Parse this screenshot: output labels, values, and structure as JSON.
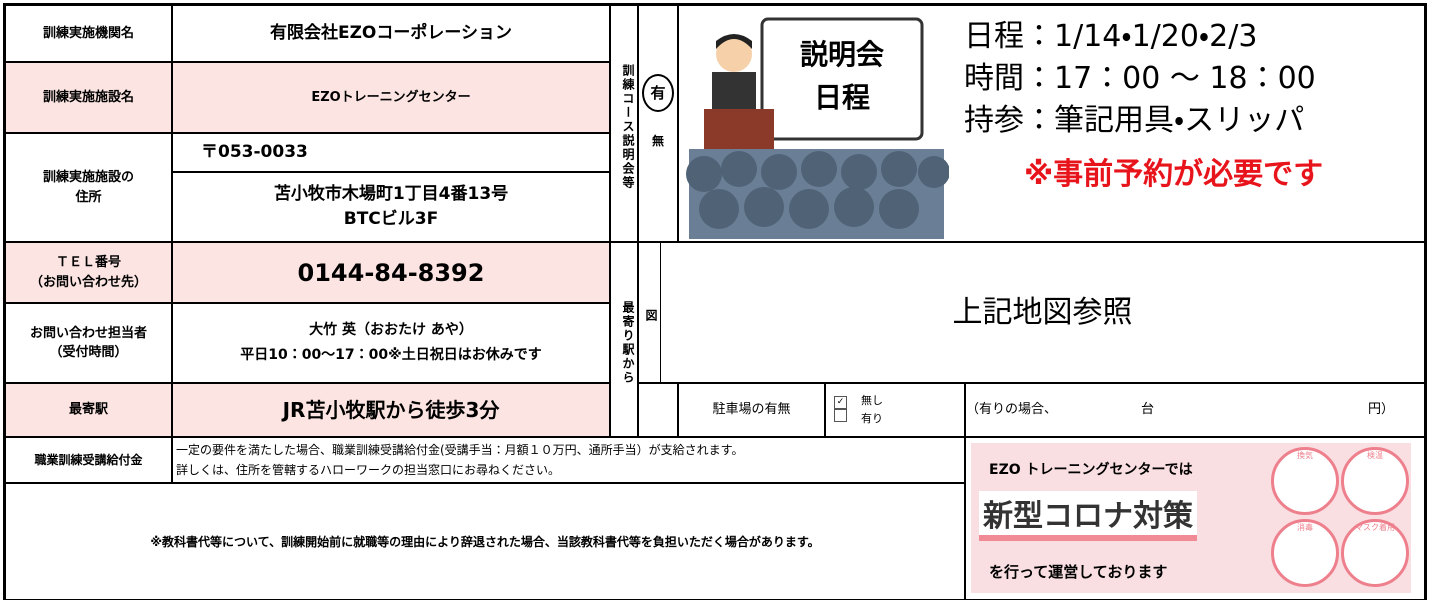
{
  "left_table": {
    "org_label": "訓練実施機関名",
    "org": "有限会社EZOコーポレーション",
    "facility_label": "訓練実施施設名",
    "facility": "EZOトレーニングセンター",
    "address_label": [
      "訓練実施施設の",
      "住所"
    ],
    "postal": "〒053-0033",
    "address": [
      "苫小牧市木場町1丁目4番13号",
      "BTCビル3F"
    ],
    "tel_label": [
      "ＴＥＬ番号",
      "（お問い合わせ先）"
    ],
    "tel": "0144-84-8392",
    "contact_label": [
      "お問い合わせ担当者",
      "（受付時間）"
    ],
    "contact": [
      "大竹 英（おおたけ あや）",
      "平日10：00～17：00※土日祝日はお休みです"
    ],
    "station_label": "最寄駅",
    "station": "JR苫小牧駅から徒歩3分"
  },
  "session": {
    "label": "訓練コース説明会等",
    "yes": "有",
    "no": "無",
    "board": [
      "説明会",
      "日程"
    ],
    "schedule": "日程：1/14・1/20・2/3",
    "time": "時間：17：00 ～ 18：00",
    "bring": "持参：筆記用具・スリッパ",
    "note": "※事前予約が必要です"
  },
  "access": {
    "label": "最寄り駅から",
    "label2": "図",
    "text": "上記地図参照"
  },
  "parking": {
    "label": "駐車場の有無",
    "none_check": "✓",
    "none": "無し",
    "yes": "有り",
    "detail": [
      "（有りの場合、",
      "台",
      "円）"
    ]
  },
  "benefit": {
    "label": "職業訓練受講給付金",
    "text": [
      "一定の要件を満たした場合、職業訓練受講給付金(受講手当：月額１０万円、通所手当）が支給されます。",
      "詳しくは、住所を管轄するハローワークの担当窓口にお尋ねください。"
    ]
  },
  "notice": "※教科書代等について、訓練開始前に就職等の理由により辞退された場合、当該教科書代等を負担いただく場合があります。",
  "corona": {
    "lead": "EZO トレーニングセンターでは",
    "title": "新型コロナ対策",
    "tail": "を行って運営しております",
    "icons": [
      "換気",
      "検温",
      "消毒",
      "マスク着用"
    ]
  }
}
